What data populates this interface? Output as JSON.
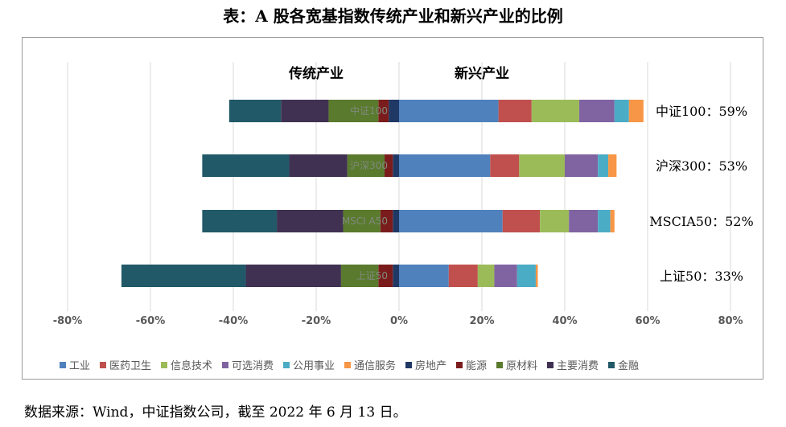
{
  "title": "表：A 股各宽基指数传统产业和新兴产业的比例",
  "source_note": "数据来源：Wind，中证指数公司，截至 2022 年 6 月 13 日。",
  "colors": {
    "工业": "#4f81bd",
    "医药卫生": "#c0504d",
    "信息技术": "#9bbb59",
    "可选消费": "#8064a2",
    "公用事业": "#4bacc6",
    "通信服务": "#f79646",
    "房地产": "#1f3864",
    "能源": "#7b1c1c",
    "原材料": "#5a7a2e",
    "主要消费": "#403152",
    "金融": "#215968"
  },
  "chart_data": {
    "type": "bar",
    "orientation": "horizontal",
    "stacked": true,
    "side_labels": [
      "传统产业",
      "新兴产业"
    ],
    "xlim": [
      -0.8,
      0.8
    ],
    "xticks": [
      -0.8,
      -0.6,
      -0.4,
      -0.2,
      0,
      0.2,
      0.4,
      0.6,
      0.8
    ],
    "xtick_labels": [
      "-80%",
      "-60%",
      "-40%",
      "-20%",
      "0%",
      "20%",
      "40%",
      "60%",
      "80%"
    ],
    "grid": true,
    "legend_position": "bottom",
    "categories": [
      "中证100",
      "沪深300",
      "MSCI A50",
      "上证50"
    ],
    "annotations": [
      "中证100：59%",
      "沪深300：53%",
      "MSCIA50：52%",
      "上证50：33%"
    ],
    "positive_series": [
      {
        "name": "工业",
        "values": [
          0.24,
          0.22,
          0.25,
          0.12
        ]
      },
      {
        "name": "医药卫生",
        "values": [
          0.08,
          0.07,
          0.09,
          0.07
        ]
      },
      {
        "name": "信息技术",
        "values": [
          0.115,
          0.11,
          0.07,
          0.04
        ]
      },
      {
        "name": "可选消费",
        "values": [
          0.085,
          0.08,
          0.07,
          0.055
        ]
      },
      {
        "name": "公用事业",
        "values": [
          0.035,
          0.025,
          0.03,
          0.045
        ]
      },
      {
        "name": "通信服务",
        "values": [
          0.035,
          0.02,
          0.01,
          0.005
        ]
      }
    ],
    "negative_series": [
      {
        "name": "房地产",
        "values": [
          -0.025,
          -0.015,
          -0.015,
          -0.015
        ]
      },
      {
        "name": "能源",
        "values": [
          -0.025,
          -0.02,
          -0.03,
          -0.035
        ]
      },
      {
        "name": "原材料",
        "values": [
          -0.12,
          -0.09,
          -0.09,
          -0.09
        ]
      },
      {
        "name": "主要消费",
        "values": [
          -0.115,
          -0.14,
          -0.16,
          -0.23
        ]
      },
      {
        "name": "金融",
        "values": [
          -0.125,
          -0.21,
          -0.18,
          -0.3
        ]
      }
    ],
    "legend": [
      "工业",
      "医药卫生",
      "信息技术",
      "可选消费",
      "公用事业",
      "通信服务",
      "房地产",
      "能源",
      "原材料",
      "主要消费",
      "金融"
    ]
  }
}
